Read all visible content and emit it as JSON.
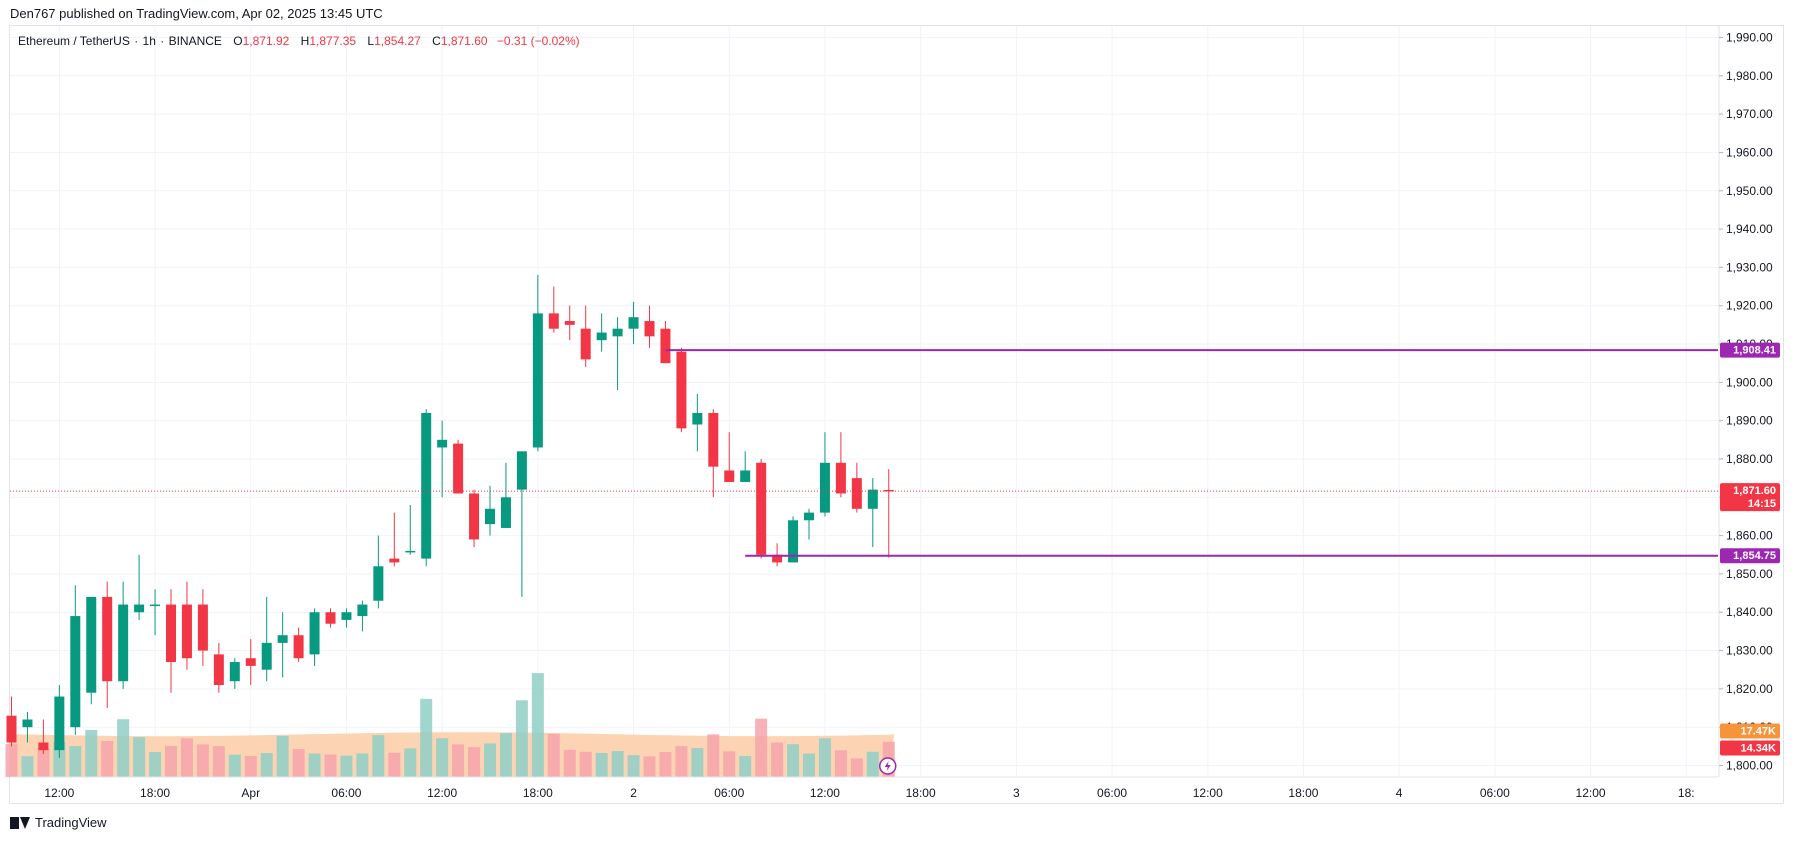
{
  "header": {
    "published": "Den767 published on TradingView.com, Apr 02, 2025 13:45 UTC"
  },
  "legend": {
    "symbol": "Ethereum / TetherUS",
    "sep1": "·",
    "interval": "1h",
    "sep2": "·",
    "exchange": "BINANCE",
    "o_label": "O",
    "o_value": "1,871.92",
    "h_label": "H",
    "h_value": "1,877.35",
    "l_label": "L",
    "l_value": "1,854.27",
    "c_label": "C",
    "c_value": "1,871.60",
    "change": "−0.31 (−0.02%)"
  },
  "footer": {
    "brand": "TradingView"
  },
  "colors": {
    "up": "#089981",
    "down": "#f23645",
    "up_vol": "#8fcfc6",
    "down_vol": "#f6a3aa",
    "vol_ma_fill": "#fbcda6",
    "level_line": "#9c27b0",
    "grid": "#f0f3fa"
  },
  "chart_data": {
    "type": "candlestick",
    "symbol": "ETHUSDT",
    "ylim": [
      1797,
      1993
    ],
    "y_ticks": [
      "1,990.00",
      "1,980.00",
      "1,970.00",
      "1,960.00",
      "1,950.00",
      "1,940.00",
      "1,930.00",
      "1,920.00",
      "1,910.00",
      "1,900.00",
      "1,890.00",
      "1,880.00",
      "1,870.00",
      "1,860.00",
      "1,850.00",
      "1,840.00",
      "1,830.00",
      "1,820.00",
      "1,810.00",
      "1,800.00"
    ],
    "y_tick_values": [
      1990,
      1980,
      1970,
      1960,
      1950,
      1940,
      1930,
      1920,
      1910,
      1900,
      1890,
      1880,
      1870,
      1860,
      1850,
      1840,
      1830,
      1820,
      1810,
      1800
    ],
    "x_ticks": [
      {
        "label": "12:00",
        "bar": 3
      },
      {
        "label": "18:00",
        "bar": 9
      },
      {
        "label": "Apr",
        "bar": 15
      },
      {
        "label": "06:00",
        "bar": 21
      },
      {
        "label": "12:00",
        "bar": 27
      },
      {
        "label": "18:00",
        "bar": 33
      },
      {
        "label": "2",
        "bar": 39
      },
      {
        "label": "06:00",
        "bar": 45
      },
      {
        "label": "12:00",
        "bar": 51
      },
      {
        "label": "18:00",
        "bar": 57
      },
      {
        "label": "3",
        "bar": 63
      },
      {
        "label": "06:00",
        "bar": 69
      },
      {
        "label": "12:00",
        "bar": 75
      },
      {
        "label": "18:00",
        "bar": 81
      },
      {
        "label": "4",
        "bar": 87
      },
      {
        "label": "06:00",
        "bar": 93
      },
      {
        "label": "12:00",
        "bar": 99
      },
      {
        "label": "18:",
        "bar": 105
      }
    ],
    "candles": [
      [
        1813,
        1818,
        1805,
        1806
      ],
      [
        1810,
        1814,
        1806,
        1812
      ],
      [
        1806,
        1812,
        1803,
        1804
      ],
      [
        1804,
        1821,
        1802,
        1818
      ],
      [
        1810,
        1847,
        1808,
        1839
      ],
      [
        1819,
        1843,
        1816,
        1844
      ],
      [
        1844,
        1848,
        1815,
        1822
      ],
      [
        1822,
        1848,
        1820,
        1842
      ],
      [
        1840,
        1855,
        1838,
        1842
      ],
      [
        1842,
        1846,
        1834,
        1842
      ],
      [
        1842,
        1846,
        1819,
        1827
      ],
      [
        1842,
        1848,
        1825,
        1828
      ],
      [
        1842,
        1846,
        1826,
        1830
      ],
      [
        1829,
        1832,
        1819,
        1821
      ],
      [
        1822,
        1828,
        1820,
        1827
      ],
      [
        1828,
        1833,
        1821,
        1826
      ],
      [
        1825,
        1844,
        1822,
        1832
      ],
      [
        1832,
        1840,
        1823,
        1834
      ],
      [
        1834,
        1836,
        1827,
        1828
      ],
      [
        1829,
        1841,
        1826,
        1840
      ],
      [
        1840,
        1841,
        1836,
        1837
      ],
      [
        1838,
        1841,
        1836,
        1840
      ],
      [
        1839,
        1843,
        1835,
        1842
      ],
      [
        1843,
        1860,
        1841,
        1852
      ],
      [
        1854,
        1866,
        1852,
        1853
      ],
      [
        1856,
        1868,
        1855,
        1856
      ],
      [
        1854,
        1893,
        1852,
        1892
      ],
      [
        1883,
        1890,
        1870,
        1885
      ],
      [
        1884,
        1885,
        1872,
        1871
      ],
      [
        1871,
        1872,
        1857,
        1859
      ],
      [
        1863,
        1873,
        1860,
        1867
      ],
      [
        1862,
        1879,
        1862,
        1870
      ],
      [
        1872,
        1882,
        1844,
        1882
      ],
      [
        1883,
        1928,
        1882,
        1918
      ],
      [
        1918,
        1925,
        1913,
        1914
      ],
      [
        1916,
        1920,
        1911,
        1915
      ],
      [
        1914,
        1920,
        1904,
        1906
      ],
      [
        1911,
        1918,
        1908,
        1913
      ],
      [
        1912,
        1917,
        1898,
        1914
      ],
      [
        1914,
        1921,
        1910,
        1917
      ],
      [
        1916,
        1920,
        1909,
        1912
      ],
      [
        1914,
        1916,
        1905,
        1905
      ],
      [
        1908,
        1909,
        1887,
        1888
      ],
      [
        1889,
        1897,
        1882,
        1892
      ],
      [
        1892,
        1893,
        1870,
        1878
      ],
      [
        1877,
        1887,
        1875,
        1874
      ],
      [
        1874,
        1882,
        1875,
        1877
      ],
      [
        1879,
        1880,
        1854,
        1855
      ],
      [
        1855,
        1858,
        1852,
        1853
      ],
      [
        1853,
        1865,
        1853,
        1864
      ],
      [
        1864,
        1867,
        1859,
        1866
      ],
      [
        1866,
        1887,
        1865,
        1879
      ],
      [
        1879,
        1887,
        1870,
        1871
      ],
      [
        1875,
        1879,
        1866,
        1867
      ],
      [
        1867,
        1875,
        1857,
        1872
      ],
      [
        1871.92,
        1877.35,
        1854.27,
        1871.6
      ]
    ],
    "volumes": [
      13.5,
      8.5,
      11.8,
      14.3,
      12.6,
      19.2,
      14.7,
      23.6,
      16.3,
      10.2,
      12.7,
      15.8,
      13.3,
      12.6,
      9.1,
      8.6,
      9.8,
      16.8,
      11.4,
      9.6,
      9.2,
      8.7,
      9.6,
      17.1,
      9.9,
      11.7,
      31.9,
      15.8,
      13.3,
      12.2,
      13.7,
      17.9,
      31.3,
      42.4,
      17.6,
      11.1,
      10.3,
      9.8,
      10.6,
      8.9,
      8.4,
      10.2,
      12.6,
      11.8,
      17.4,
      10.5,
      8.6,
      23.8,
      14.1,
      13.4,
      9.6,
      15.8,
      10.9,
      7.6,
      10.3,
      14.34
    ],
    "volume_ma": 17.47,
    "volume_ma_label": "17.47K",
    "volume_last_label": "14.34K",
    "last_price": 1871.6,
    "last_price_label": "1,871.60",
    "countdown_label": "14:15",
    "levels": [
      {
        "value": 1908.41,
        "label": "1,908.41",
        "start_bar": 41
      },
      {
        "value": 1854.75,
        "label": "1,854.75",
        "start_bar": 46
      }
    ]
  }
}
